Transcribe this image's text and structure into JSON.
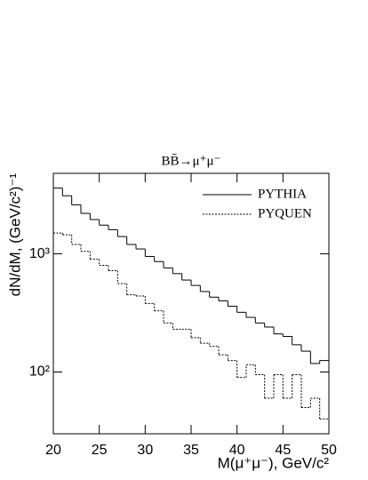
{
  "chart_data": {
    "type": "histogram",
    "title": "BB̄→μ⁺μ⁻",
    "x_label": "M(μ⁺μ⁻), GeV/c²",
    "y_label": "dN/dM, (GeV/c²)⁻¹",
    "bins": [
      20,
      21,
      22,
      23,
      24,
      25,
      26,
      27,
      28,
      29,
      30,
      31,
      32,
      33,
      34,
      35,
      36,
      37,
      38,
      39,
      40,
      41,
      42,
      43,
      44,
      45,
      46,
      47,
      48,
      49,
      50
    ],
    "series": [
      {
        "name": "PYTHIA",
        "color": "#000000",
        "line_style": "solid",
        "values": [
          3600,
          3100,
          2600,
          2200,
          1950,
          1750,
          1600,
          1400,
          1200,
          1100,
          950,
          860,
          760,
          680,
          600,
          540,
          480,
          430,
          400,
          360,
          320,
          290,
          260,
          240,
          210,
          200,
          170,
          150,
          118,
          125
        ]
      },
      {
        "name": "PYQUEN",
        "color": "#000000",
        "line_style": "dashed",
        "values": [
          1500,
          1450,
          1200,
          1050,
          900,
          800,
          720,
          560,
          450,
          440,
          380,
          330,
          260,
          230,
          230,
          195,
          175,
          165,
          140,
          125,
          90,
          115,
          95,
          60,
          95,
          60,
          95,
          50,
          60,
          40
        ]
      }
    ],
    "xlim": [
      20,
      50
    ],
    "xticks": [
      20,
      25,
      30,
      35,
      40,
      45,
      50
    ],
    "ylim": [
      30,
      4800
    ],
    "yticks": [
      {
        "value": 100,
        "label": "10²"
      },
      {
        "value": 1000,
        "label": "10³"
      }
    ],
    "log_y": true,
    "legend": "top-right"
  }
}
